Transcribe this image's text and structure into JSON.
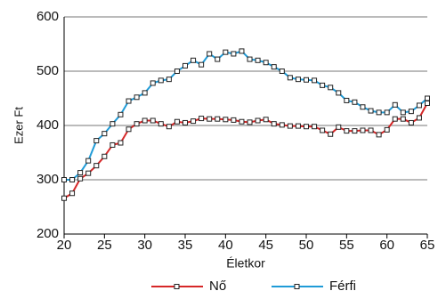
{
  "chart_data": {
    "type": "line",
    "x_label": "Életkor",
    "y_label": "Ezer Ft",
    "x": [
      20,
      21,
      22,
      23,
      24,
      25,
      26,
      27,
      28,
      29,
      30,
      31,
      32,
      33,
      34,
      35,
      36,
      37,
      38,
      39,
      40,
      41,
      42,
      43,
      44,
      45,
      46,
      47,
      48,
      49,
      50,
      51,
      52,
      53,
      54,
      55,
      56,
      57,
      58,
      59,
      60,
      61,
      62,
      63,
      64,
      65
    ],
    "series": [
      {
        "name": "Nő",
        "color": "#d62728",
        "values": [
          266,
          275,
          302,
          312,
          326,
          343,
          364,
          368,
          393,
          403,
          409,
          409,
          403,
          398,
          407,
          405,
          408,
          413,
          412,
          412,
          411,
          410,
          407,
          406,
          409,
          411,
          403,
          401,
          399,
          399,
          398,
          398,
          391,
          384,
          397,
          390,
          390,
          391,
          391,
          383,
          392,
          412,
          412,
          405,
          414,
          441
        ]
      },
      {
        "name": "Férfi",
        "color": "#1f9bd7",
        "values": [
          300,
          300,
          313,
          335,
          372,
          385,
          403,
          420,
          445,
          452,
          460,
          478,
          483,
          485,
          500,
          510,
          520,
          512,
          532,
          522,
          535,
          532,
          537,
          522,
          520,
          516,
          508,
          500,
          488,
          485,
          484,
          483,
          474,
          470,
          460,
          446,
          443,
          434,
          427,
          424,
          424,
          438,
          424,
          426,
          437,
          450
        ]
      }
    ],
    "xlim": [
      20,
      65
    ],
    "xticks": [
      20,
      25,
      30,
      35,
      40,
      45,
      50,
      55,
      60,
      65
    ],
    "ylim": [
      200,
      600
    ],
    "yticks": [
      200,
      300,
      400,
      500,
      600
    ],
    "grid": true
  }
}
